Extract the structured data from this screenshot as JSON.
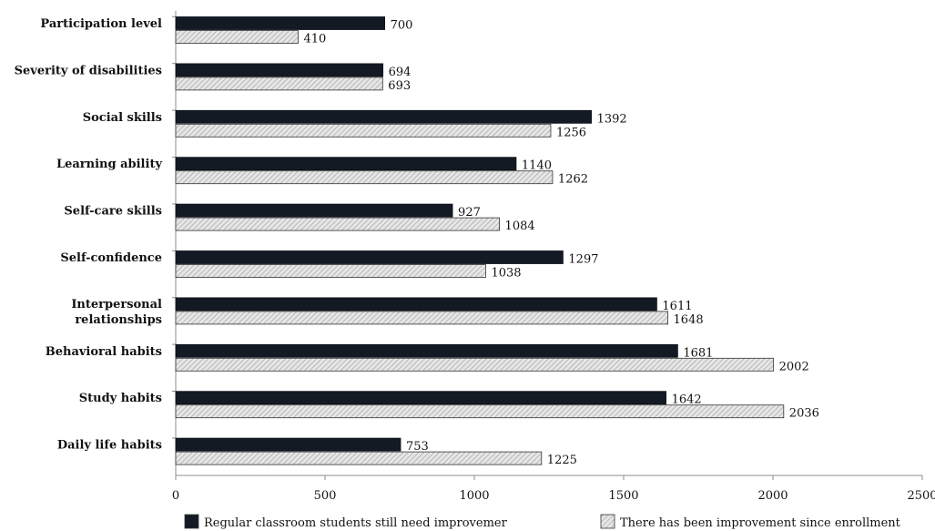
{
  "chart_data": {
    "type": "bar",
    "orientation": "horizontal",
    "categories": [
      [
        "Participation level"
      ],
      [
        "Severity of disabilities"
      ],
      [
        "Social skills"
      ],
      [
        "Learning ability"
      ],
      [
        "Self-care skills"
      ],
      [
        "Self-confidence"
      ],
      [
        "Interpersonal",
        "relationships"
      ],
      [
        "Behavioral habits"
      ],
      [
        "Study habits"
      ],
      [
        "Daily life habits"
      ]
    ],
    "series": [
      {
        "name": "Regular classroom students still need improvemer",
        "color": "#141a24",
        "pattern": "solid",
        "values": [
          700,
          694,
          1392,
          1140,
          927,
          1297,
          1611,
          1681,
          1642,
          753
        ],
        "labels": [
          "700",
          "694",
          "1392",
          "1140",
          "927",
          "1297",
          "1611",
          "1681",
          "1642",
          "753"
        ]
      },
      {
        "name": "There has been improvement since enrollment",
        "color": "#d9d9d9",
        "pattern": "hatched",
        "values": [
          410,
          693,
          1256,
          1262,
          1084,
          1038,
          1648,
          2002,
          2036,
          1225
        ],
        "labels": [
          "410",
          "693",
          "1256",
          "1262",
          "1084",
          "1038",
          "1648",
          "2002",
          "2036",
          "1225"
        ]
      }
    ],
    "xlim": [
      0,
      2500
    ],
    "xticks": [
      0,
      500,
      1000,
      1500,
      2000,
      2500
    ],
    "xtick_labels": [
      "0",
      "500",
      "1000",
      "1500",
      "2000",
      "2500"
    ],
    "grid": false,
    "legend_position": "bottom"
  }
}
